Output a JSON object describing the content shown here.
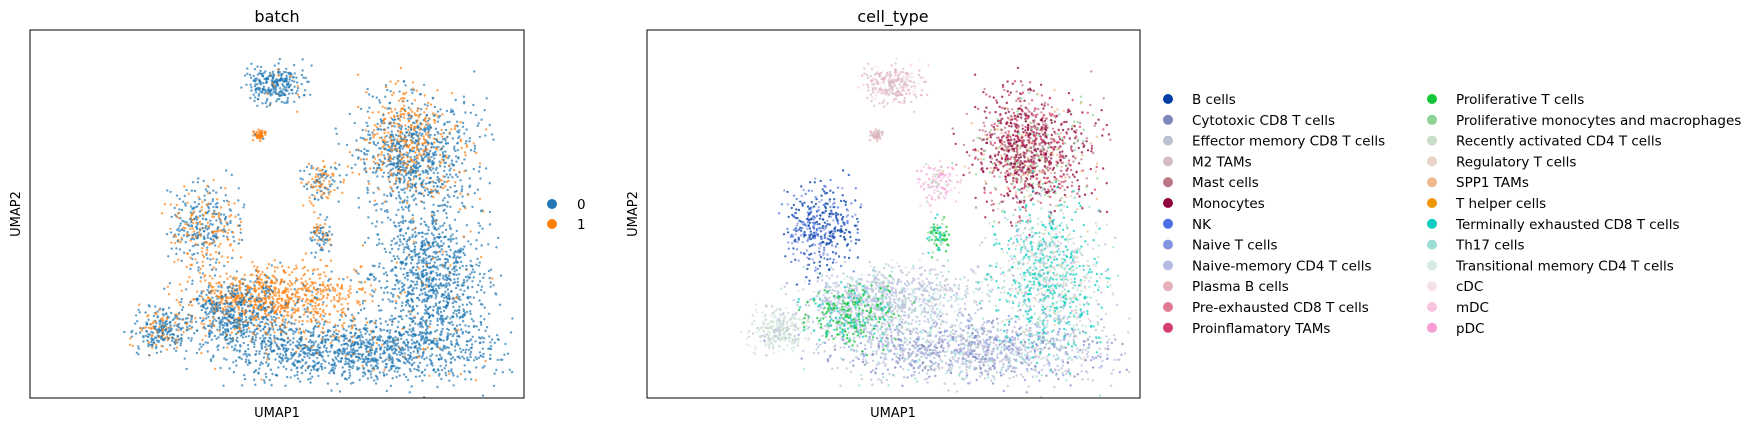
{
  "chart_data": [
    {
      "type": "scatter",
      "title": "batch",
      "xlabel": "UMAP1",
      "ylabel": "UMAP2",
      "grid": false,
      "ticks": "none",
      "legend_placement": "right",
      "legend": [
        {
          "label": "0",
          "color": "#1f77b4"
        },
        {
          "label": "1",
          "color": "#ff7f0e"
        }
      ]
    },
    {
      "type": "scatter",
      "title": "cell_type",
      "xlabel": "UMAP1",
      "ylabel": "UMAP2",
      "grid": false,
      "ticks": "none",
      "legend_placement": "right, two columns",
      "legend": [
        {
          "label": "B cells",
          "color": "#023fa5"
        },
        {
          "label": "Cytotoxic CD8 T cells",
          "color": "#7d87b9"
        },
        {
          "label": "Effector memory CD8 T cells",
          "color": "#bec1d4"
        },
        {
          "label": "M2 TAMs",
          "color": "#d6bcc0"
        },
        {
          "label": "Mast cells",
          "color": "#bb7784"
        },
        {
          "label": "Monocytes",
          "color": "#8e063b"
        },
        {
          "label": "NK",
          "color": "#4a6fe3"
        },
        {
          "label": "Naive T cells",
          "color": "#8595e1"
        },
        {
          "label": "Naive-memory CD4 T cells",
          "color": "#b5bbe3"
        },
        {
          "label": "Plasma B cells",
          "color": "#e6afb9"
        },
        {
          "label": "Pre-exhausted CD8 T cells",
          "color": "#e07b91"
        },
        {
          "label": "Proinflamatory TAMs",
          "color": "#d33f6a"
        },
        {
          "label": "Proliferative T cells",
          "color": "#11c638"
        },
        {
          "label": "Proliferative monocytes and macrophages",
          "color": "#8dd593"
        },
        {
          "label": "Recently activated CD4 T cells",
          "color": "#c6dec7"
        },
        {
          "label": "Regulatory T cells",
          "color": "#ead3c6"
        },
        {
          "label": "SPP1 TAMs",
          "color": "#f0b98d"
        },
        {
          "label": "T helper cells",
          "color": "#ef9708"
        },
        {
          "label": "Terminally exhausted CD8 T cells",
          "color": "#0fcfc0"
        },
        {
          "label": "Th17 cells",
          "color": "#9cded6"
        },
        {
          "label": "Transitional memory CD4 T cells",
          "color": "#d5eae7"
        },
        {
          "label": "cDC",
          "color": "#f3e1eb"
        },
        {
          "label": "mDC",
          "color": "#f6c4e1"
        },
        {
          "label": "pDC",
          "color": "#f79cd4"
        }
      ]
    }
  ]
}
